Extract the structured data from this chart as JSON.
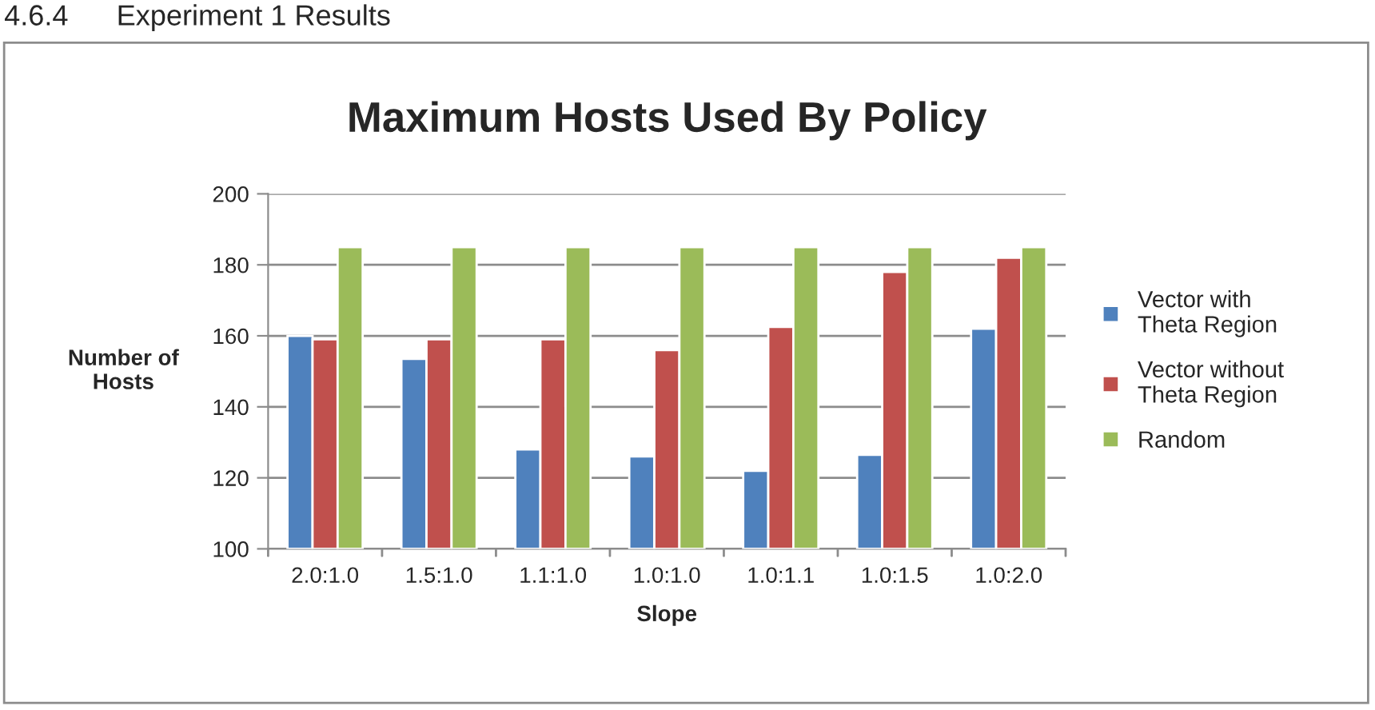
{
  "chart_data": {
    "type": "bar",
    "title": "Maximum Hosts Used By Policy",
    "xlabel": "Slope",
    "ylabel": "Number of\nHosts",
    "annotations": [
      "4.6.4      Experiment 1 Results"
    ],
    "categories": [
      "2.0:1.0",
      "1.5:1.0",
      "1.1:1.0",
      "1.0:1.0",
      "1.0:1.1",
      "1.0:1.5",
      "1.0:2.0"
    ],
    "series": [
      {
        "name": "Vector with\nTheta Region",
        "color": "#4f81bd",
        "values": [
          160,
          153.5,
          128,
          126,
          122,
          126.5,
          162
        ]
      },
      {
        "name": "Vector without\nTheta Region",
        "color": "#c0504d",
        "values": [
          159,
          159,
          159,
          156,
          162.5,
          178,
          182
        ]
      },
      {
        "name": "Random",
        "color": "#9bbb59",
        "values": [
          185,
          185,
          185,
          185,
          185,
          185,
          185
        ]
      }
    ],
    "ylim": [
      100,
      200
    ],
    "yticks": [
      100,
      120,
      140,
      160,
      180,
      200
    ],
    "grid": "y",
    "legend": "right"
  }
}
